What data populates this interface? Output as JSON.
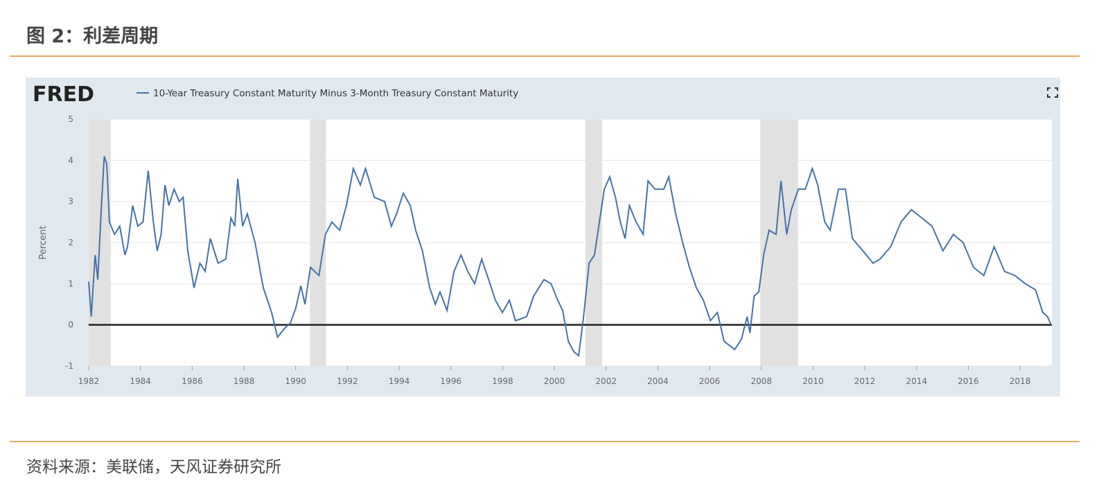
{
  "header": {
    "title": "图 2：利差周期"
  },
  "footer": {
    "source": "资料来源：美联储，天风证券研究所"
  },
  "chart_data": {
    "type": "line",
    "logo": "FRED",
    "y_label": "Percent",
    "x": [
      1982.0,
      1982.1,
      1982.25,
      1982.35,
      1982.5,
      1982.6,
      1982.7,
      1982.8,
      1983.0,
      1983.2,
      1983.4,
      1983.5,
      1983.7,
      1983.9,
      1984.1,
      1984.3,
      1984.5,
      1984.65,
      1984.8,
      1984.95,
      1985.1,
      1985.3,
      1985.5,
      1985.65,
      1985.83,
      1986.07,
      1986.3,
      1986.5,
      1986.7,
      1987.0,
      1987.3,
      1987.5,
      1987.65,
      1987.76,
      1987.95,
      1988.13,
      1988.43,
      1988.75,
      1989.07,
      1989.3,
      1989.55,
      1989.8,
      1990.0,
      1990.2,
      1990.36,
      1990.57,
      1990.9,
      1991.15,
      1991.4,
      1991.7,
      1991.96,
      1992.23,
      1992.5,
      1992.7,
      1993.04,
      1993.44,
      1993.7,
      1993.9,
      1994.16,
      1994.43,
      1994.64,
      1994.9,
      1995.18,
      1995.4,
      1995.58,
      1995.85,
      1996.12,
      1996.39,
      1996.65,
      1996.92,
      1997.19,
      1997.46,
      1997.72,
      1997.99,
      1998.26,
      1998.5,
      1998.93,
      1999.2,
      1999.6,
      1999.87,
      2000.13,
      2000.32,
      2000.54,
      2000.75,
      2000.94,
      2001.13,
      2001.34,
      2001.55,
      2001.74,
      2001.93,
      2002.14,
      2002.36,
      2002.55,
      2002.73,
      2002.9,
      2003.16,
      2003.43,
      2003.62,
      2003.89,
      2004.23,
      2004.42,
      2004.69,
      2004.96,
      2005.22,
      2005.49,
      2005.76,
      2006.03,
      2006.3,
      2006.56,
      2006.97,
      2007.23,
      2007.45,
      2007.56,
      2007.72,
      2007.9,
      2008.09,
      2008.3,
      2008.57,
      2008.76,
      2008.98,
      2009.16,
      2009.43,
      2009.7,
      2009.97,
      2010.18,
      2010.45,
      2010.66,
      2010.98,
      2011.25,
      2011.52,
      2011.79,
      2012.06,
      2012.32,
      2012.59,
      2013.0,
      2013.4,
      2013.8,
      2014.2,
      2014.6,
      2015.02,
      2015.42,
      2015.8,
      2016.2,
      2016.6,
      2017.0,
      2017.4,
      2017.8,
      2018.2,
      2018.6,
      2018.88,
      2019.06,
      2019.2
    ],
    "series": [
      {
        "name": "10-Year Treasury Constant Maturity Minus 3-Month Treasury Constant Maturity",
        "color": "#4572a7",
        "values": [
          1.05,
          0.2,
          1.7,
          1.1,
          3.0,
          4.1,
          3.9,
          2.5,
          2.2,
          2.4,
          1.7,
          1.9,
          2.9,
          2.4,
          2.5,
          3.75,
          2.5,
          1.8,
          2.2,
          3.4,
          2.9,
          3.3,
          3.0,
          3.1,
          1.8,
          0.9,
          1.5,
          1.3,
          2.1,
          1.5,
          1.6,
          2.6,
          2.4,
          3.55,
          2.4,
          2.7,
          2.0,
          0.9,
          0.3,
          -0.3,
          -0.1,
          0.05,
          0.4,
          0.95,
          0.5,
          1.4,
          1.2,
          2.2,
          2.5,
          2.3,
          2.9,
          3.8,
          3.4,
          3.8,
          3.1,
          3.0,
          2.4,
          2.7,
          3.2,
          2.9,
          2.3,
          1.8,
          0.9,
          0.5,
          0.8,
          0.35,
          1.3,
          1.7,
          1.3,
          1.0,
          1.6,
          1.1,
          0.6,
          0.3,
          0.6,
          0.1,
          0.2,
          0.7,
          1.1,
          1.0,
          0.6,
          0.35,
          -0.4,
          -0.65,
          -0.75,
          0.2,
          1.5,
          1.7,
          2.5,
          3.3,
          3.6,
          3.1,
          2.5,
          2.1,
          2.9,
          2.5,
          2.2,
          3.5,
          3.3,
          3.3,
          3.6,
          2.7,
          2.0,
          1.4,
          0.9,
          0.6,
          0.1,
          0.3,
          -0.4,
          -0.6,
          -0.35,
          0.2,
          -0.2,
          0.7,
          0.8,
          1.7,
          2.3,
          2.2,
          3.5,
          2.2,
          2.8,
          3.3,
          3.3,
          3.8,
          3.4,
          2.5,
          2.3,
          3.3,
          3.3,
          2.1,
          1.9,
          1.7,
          1.5,
          1.6,
          1.9,
          2.5,
          2.8,
          2.6,
          2.4,
          1.8,
          2.2,
          2.0,
          1.4,
          1.2,
          1.9,
          1.3,
          1.2,
          1.0,
          0.85,
          0.3,
          0.2,
          0.0
        ]
      }
    ],
    "recessions": [
      [
        1982.0,
        1982.85
      ],
      [
        1990.55,
        1991.17
      ],
      [
        2001.2,
        2001.85
      ],
      [
        2007.96,
        2009.42
      ]
    ],
    "xlim": [
      1982,
      2019.23
    ],
    "xticks": [
      1982,
      1984,
      1986,
      1988,
      1990,
      1992,
      1994,
      1996,
      1998,
      2000,
      2002,
      2004,
      2006,
      2008,
      2010,
      2012,
      2014,
      2016,
      2018
    ],
    "ylim": [
      -1,
      5
    ],
    "yticks": [
      -1,
      0,
      1,
      2,
      3,
      4,
      5
    ],
    "grid": true,
    "zero_line": 0
  }
}
